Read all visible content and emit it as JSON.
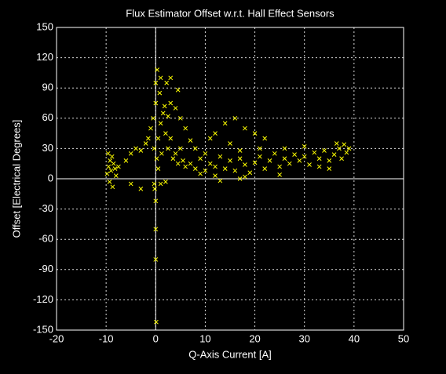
{
  "chart_data": {
    "type": "scatter",
    "title": "Flux Estimator Offset w.r.t. Hall Effect Sensors",
    "x_label": "Q-Axis Current [A]",
    "y_label": "Offset [Electrical Degrees]",
    "color": "#ffff00",
    "grid": true,
    "zero_lines": true,
    "xlim": [
      -20,
      50
    ],
    "xticks": [
      -20,
      -10,
      0,
      10,
      20,
      30,
      40,
      50
    ],
    "ylim": [
      -150,
      150
    ],
    "yticks": [
      -150,
      -120,
      -90,
      -60,
      -30,
      0,
      30,
      60,
      90,
      120,
      150
    ],
    "x": [
      -9.5,
      -9.2,
      -9,
      -8.8,
      -8.5,
      -9.8,
      -9.3,
      -8.2,
      -8,
      -9.6,
      -8.7,
      -7.5,
      -6,
      -5,
      -4,
      -3,
      -2,
      -1.5,
      -1,
      -0.5,
      0,
      0,
      0.3,
      0.8,
      1,
      1.5,
      0.5,
      -0.3,
      0.2,
      0.5,
      1.2,
      2,
      2.5,
      3,
      3.5,
      4,
      4.5,
      5,
      5.5,
      6,
      2.2,
      3,
      4.5,
      1.8,
      0,
      -0.2,
      0,
      0,
      0.1,
      -0.3,
      1,
      7,
      8,
      9,
      10,
      11,
      12,
      13,
      14,
      15,
      16,
      17,
      18,
      19,
      20,
      21,
      22,
      23,
      24,
      25,
      26,
      27,
      28,
      29,
      30,
      31,
      32,
      33,
      34,
      35,
      36,
      37,
      38,
      38.5,
      37.5,
      36.5,
      39,
      12,
      14,
      16,
      18,
      20,
      11,
      15,
      22,
      10,
      8,
      7,
      9,
      12,
      18,
      25,
      6,
      5,
      4,
      3,
      1,
      2.5,
      17,
      21,
      26,
      30,
      33,
      35,
      13,
      17,
      -5,
      -3,
      2
    ],
    "values": [
      12,
      18,
      8,
      22,
      15,
      5,
      -3,
      10,
      3,
      25,
      -8,
      12,
      18,
      25,
      30,
      28,
      35,
      40,
      50,
      60,
      75,
      95,
      108,
      85,
      55,
      65,
      40,
      30,
      20,
      10,
      25,
      45,
      30,
      40,
      20,
      25,
      15,
      30,
      18,
      12,
      95,
      100,
      88,
      72,
      -22,
      -10,
      -50,
      -80,
      -142,
      -5,
      -5,
      15,
      10,
      20,
      8,
      15,
      12,
      22,
      10,
      18,
      8,
      20,
      14,
      6,
      16,
      22,
      10,
      18,
      25,
      12,
      20,
      15,
      24,
      18,
      22,
      14,
      26,
      20,
      28,
      18,
      24,
      30,
      34,
      26,
      20,
      35,
      30,
      45,
      55,
      60,
      50,
      45,
      40,
      35,
      40,
      25,
      30,
      38,
      5,
      3,
      2,
      4,
      50,
      60,
      70,
      75,
      100,
      62,
      28,
      30,
      30,
      32,
      12,
      10,
      -2,
      0,
      -5,
      -10,
      -3
    ]
  }
}
